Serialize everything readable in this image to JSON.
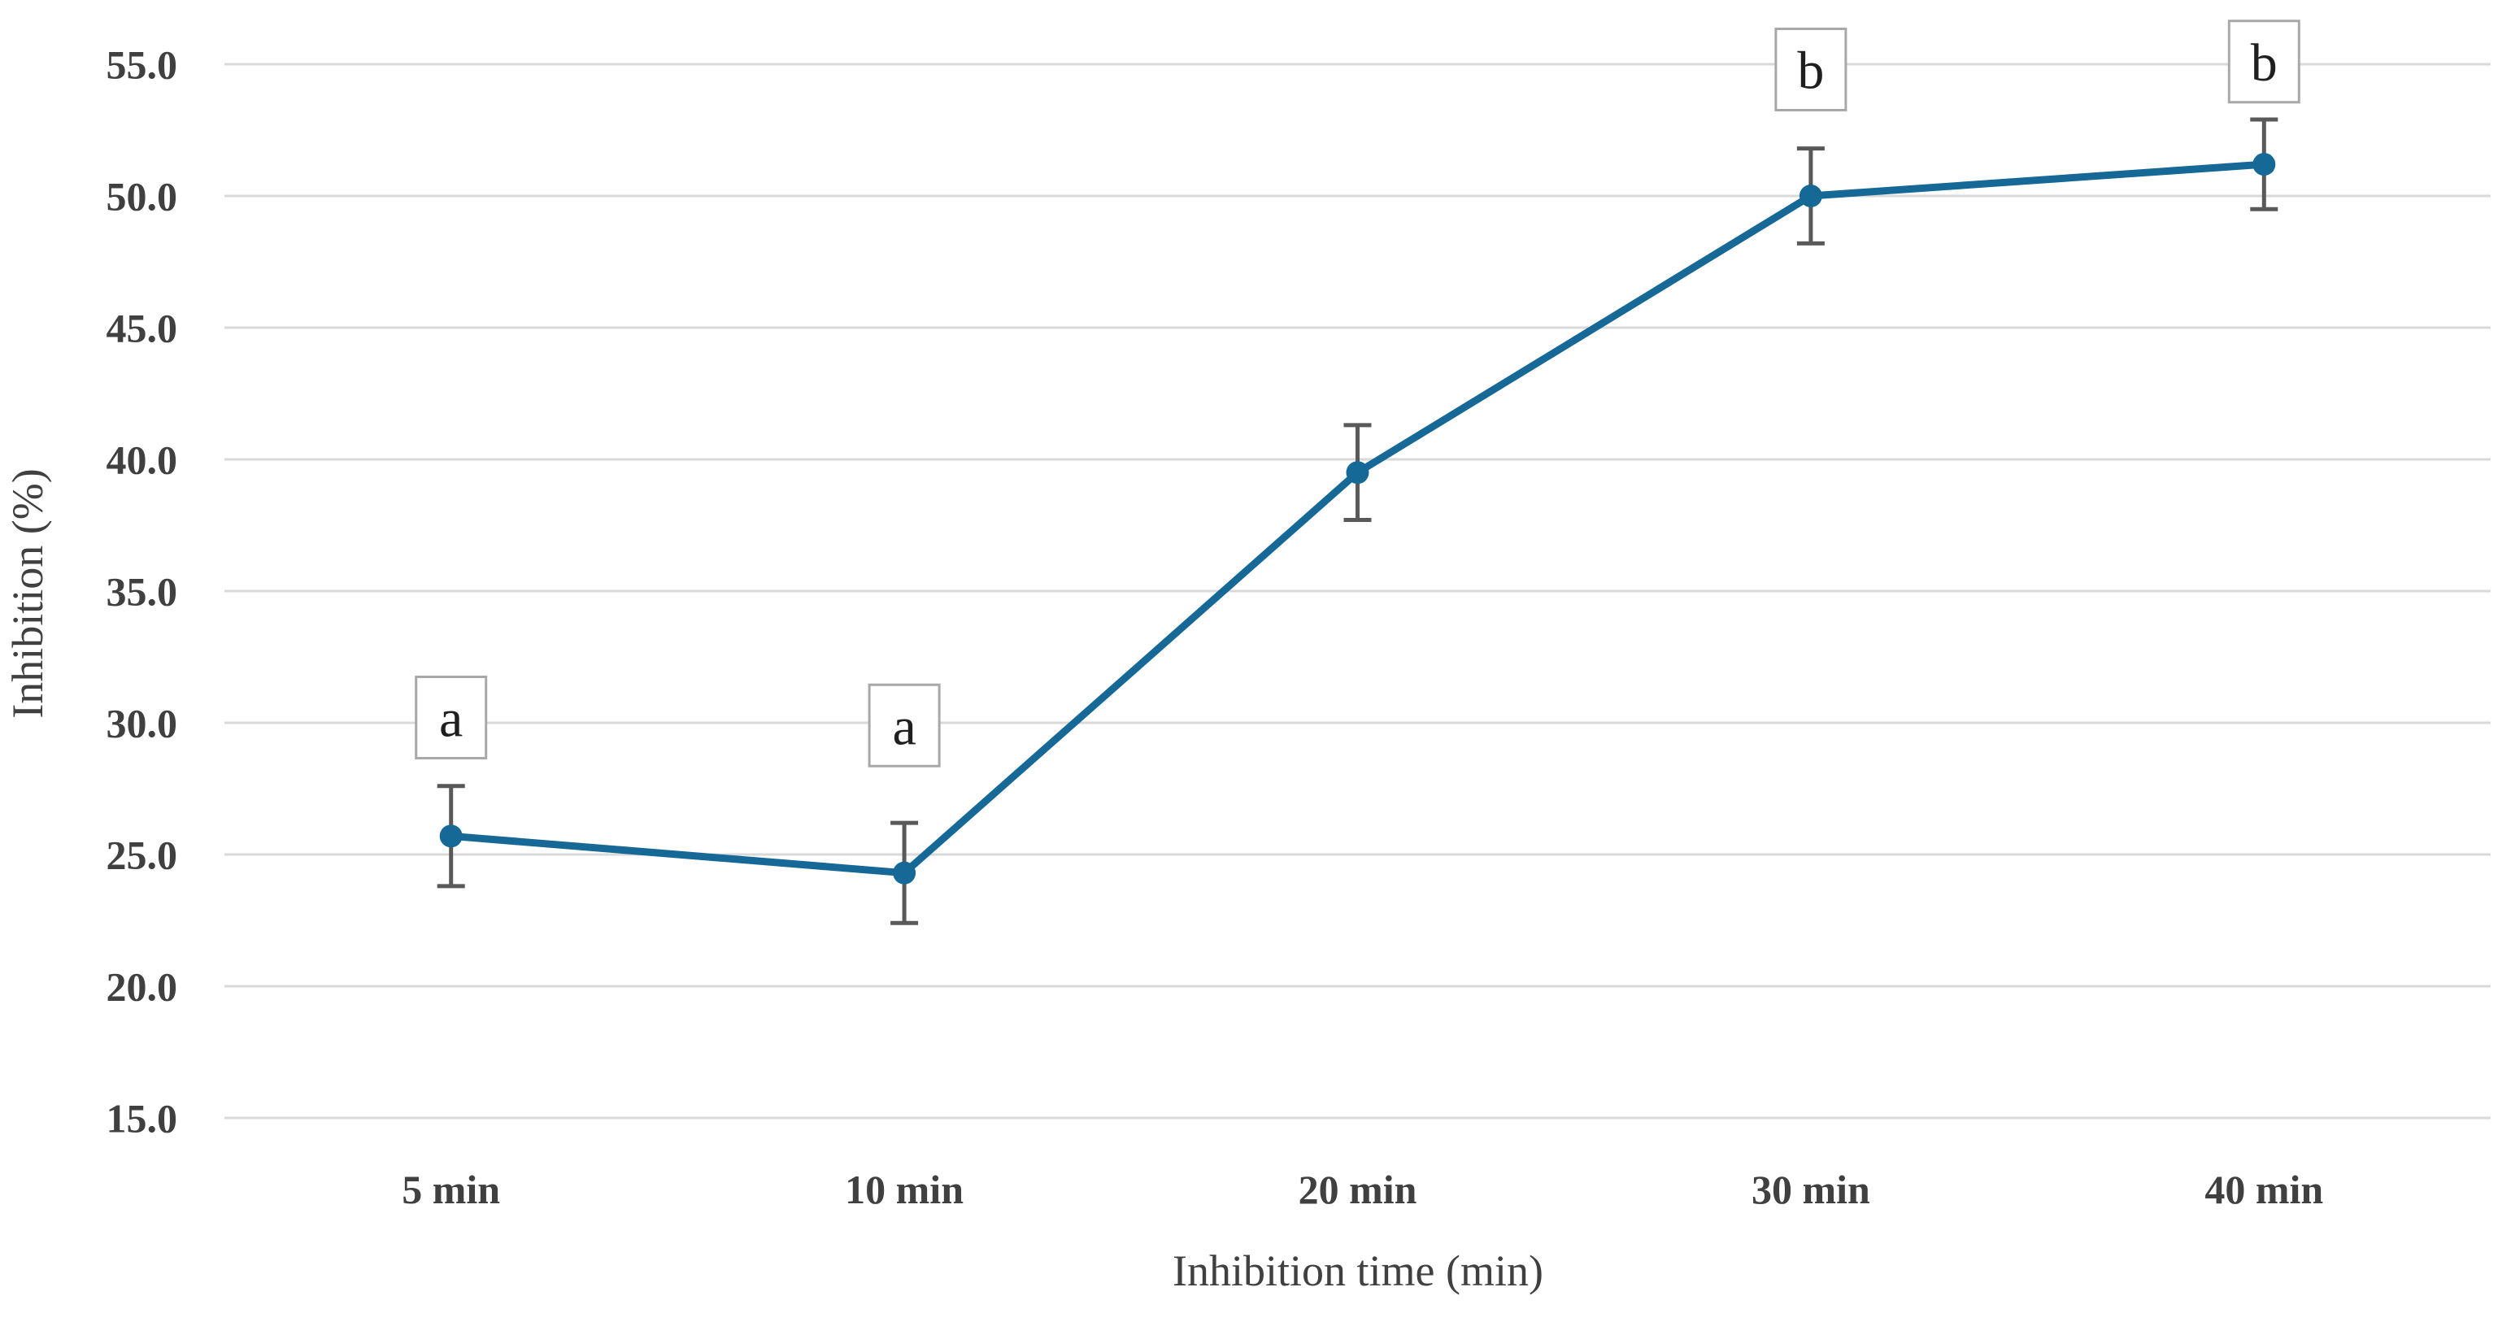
{
  "figure": {
    "background": "#ffffff"
  },
  "chart_data": {
    "type": "line",
    "title": "",
    "xlabel": "Inhibition time (min)",
    "ylabel": "Inhibition (%)",
    "categories": [
      "5 min",
      "10 min",
      "20 min",
      "30 min",
      "40 min"
    ],
    "series": [
      {
        "name": "Inhibition",
        "values": [
          25.7,
          24.3,
          39.5,
          50.0,
          51.2
        ],
        "error_bars": [
          1.9,
          1.9,
          1.8,
          1.8,
          1.7
        ]
      }
    ],
    "annotations": [
      {
        "index": 0,
        "label": "a",
        "y": 30.2
      },
      {
        "index": 1,
        "label": "a",
        "y": 29.9
      },
      {
        "index": 3,
        "label": "b",
        "y": 54.8
      },
      {
        "index": 4,
        "label": "b",
        "y": 55.1
      }
    ],
    "ytick_labels": [
      "55.0",
      "50.0",
      "45.0",
      "40.0",
      "35.0",
      "30.0",
      "25.0",
      "20.0",
      "15.0"
    ],
    "ylim": [
      15,
      55
    ],
    "grid": "horizontal",
    "legend": "none",
    "marker": "circle",
    "colors": {
      "line": "#166896",
      "marker": "#166896",
      "error_bar": "#595959",
      "gridline": "#d9d9d9",
      "tick_text": "#404040",
      "axis_title_text": "#404040",
      "annotation_text": "#1f1f1f",
      "annotation_border": "#a8a8a8",
      "annotation_fill": "#ffffff"
    }
  }
}
